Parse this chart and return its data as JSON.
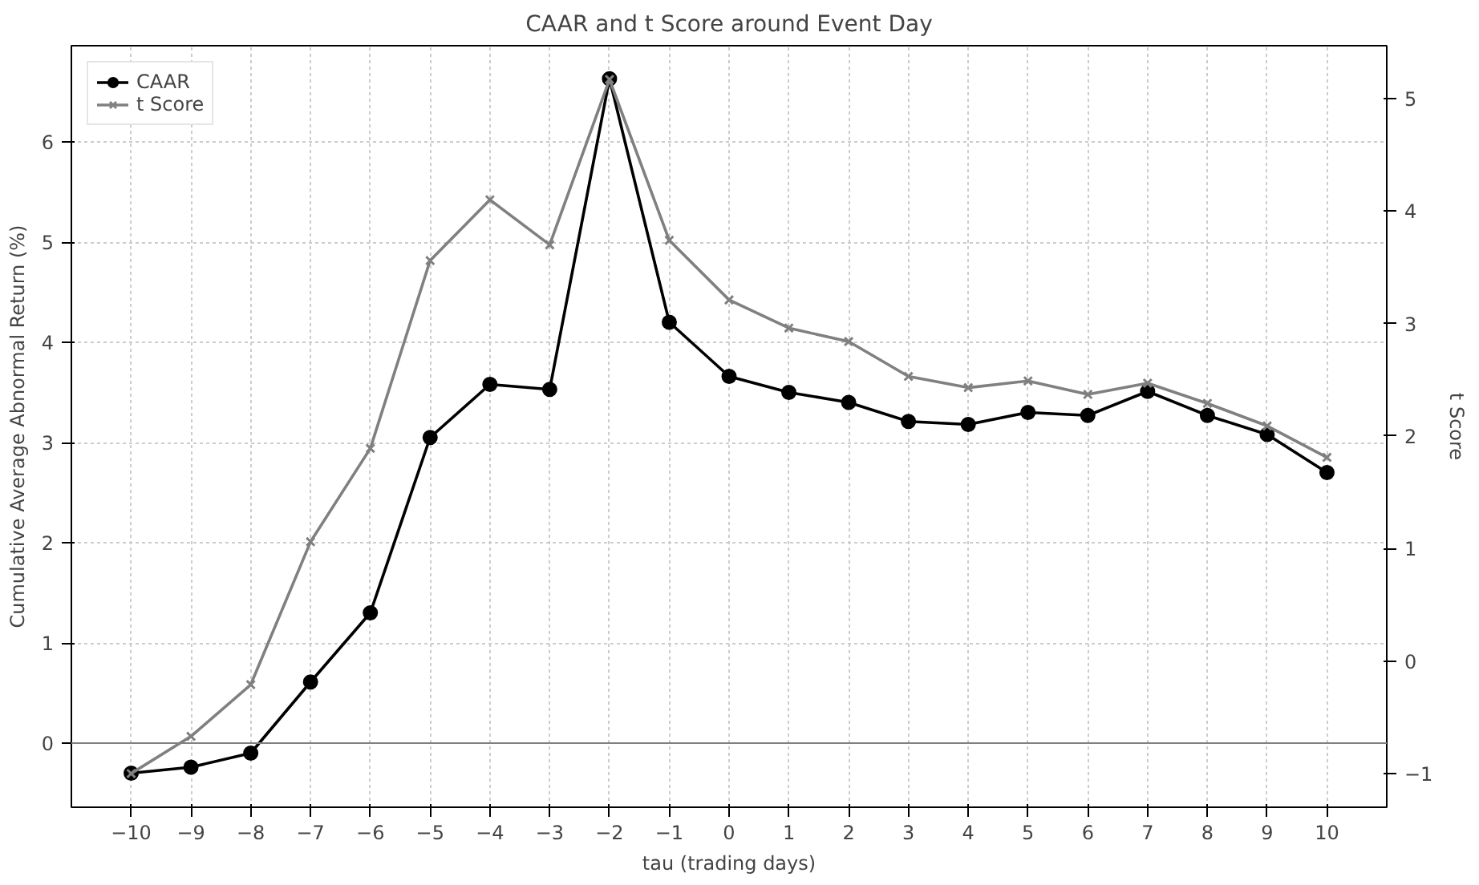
{
  "chart_data": {
    "type": "line",
    "title": "CAAR and t Score around Event Day",
    "xlabel": "tau (trading days)",
    "ylabel": "Cumulative Average Abnormal Return (%)",
    "y2label": "t Score",
    "x": [
      -10,
      -9,
      -8,
      -7,
      -6,
      -5,
      -4,
      -3,
      -2,
      -1,
      0,
      1,
      2,
      3,
      4,
      5,
      6,
      7,
      8,
      9,
      10
    ],
    "series": [
      {
        "name": "CAAR",
        "color": "#000000",
        "marker": "circle",
        "values": [
          -0.3,
          -0.24,
          -0.1,
          0.61,
          1.3,
          3.05,
          3.58,
          3.53,
          6.63,
          4.2,
          3.66,
          3.5,
          3.4,
          3.21,
          3.18,
          3.3,
          3.27,
          3.51,
          3.27,
          3.08,
          2.7
        ]
      },
      {
        "name": "t Score",
        "color": "#808080",
        "marker": "cross",
        "axis": "y2",
        "values": [
          -1.0,
          -0.67,
          -0.21,
          1.06,
          1.89,
          3.56,
          4.1,
          3.7,
          5.17,
          3.74,
          3.21,
          2.96,
          2.84,
          2.53,
          2.43,
          2.49,
          2.37,
          2.47,
          2.29,
          2.09,
          1.81
        ]
      }
    ],
    "xlim": [
      -11,
      11
    ],
    "xticks": [
      -10,
      -9,
      -8,
      -7,
      -6,
      -5,
      -4,
      -3,
      -2,
      -1,
      0,
      1,
      2,
      3,
      4,
      5,
      6,
      7,
      8,
      9,
      10
    ],
    "ylim": [
      -0.64,
      6.96
    ],
    "yticks": [
      0,
      1,
      2,
      3,
      4,
      5,
      6
    ],
    "y2lim": [
      -1.3,
      5.47
    ],
    "y2ticks": [
      -1,
      0,
      1,
      2,
      3,
      4,
      5
    ],
    "ref_lines": [
      {
        "axis": "y",
        "value": 0,
        "color": "#808080"
      }
    ],
    "grid": true,
    "legend": "top left",
    "line_style": "solid"
  }
}
